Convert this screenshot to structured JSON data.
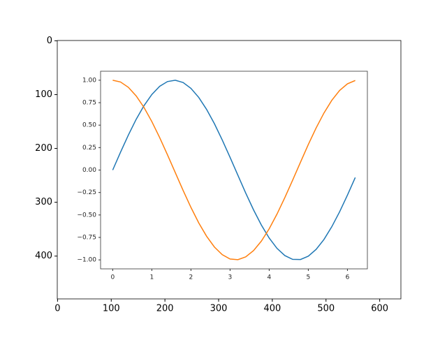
{
  "chart_data": [
    {
      "type": "image",
      "xlim": [
        -0.5,
        639.5
      ],
      "ylim": [
        479.5,
        -0.5
      ],
      "xticks": [
        0,
        100,
        200,
        300,
        400,
        500,
        600
      ],
      "yticks": [
        0,
        100,
        200,
        300,
        400
      ]
    },
    {
      "type": "line",
      "x": [
        0,
        0.2,
        0.4,
        0.6,
        0.8,
        1.0,
        1.2,
        1.4,
        1.6,
        1.8,
        2.0,
        2.2,
        2.4,
        2.6,
        2.8,
        3.0,
        3.2,
        3.4,
        3.6,
        3.8,
        4.0,
        4.2,
        4.4,
        4.6,
        4.8,
        5.0,
        5.2,
        5.4,
        5.6,
        5.8,
        6.0,
        6.2
      ],
      "series": [
        {
          "color": "#1f77b4",
          "values": [
            0,
            0.199,
            0.389,
            0.565,
            0.717,
            0.841,
            0.932,
            0.985,
            1.0,
            0.974,
            0.909,
            0.808,
            0.675,
            0.516,
            0.335,
            0.141,
            -0.058,
            -0.256,
            -0.443,
            -0.612,
            -0.757,
            -0.872,
            -0.952,
            -0.994,
            -0.996,
            -0.959,
            -0.883,
            -0.773,
            -0.631,
            -0.465,
            -0.279,
            -0.083
          ]
        },
        {
          "color": "#ff7f0e",
          "values": [
            1,
            0.98,
            0.921,
            0.825,
            0.697,
            0.54,
            0.362,
            0.17,
            -0.029,
            -0.227,
            -0.416,
            -0.589,
            -0.737,
            -0.857,
            -0.942,
            -0.99,
            -0.998,
            -0.967,
            -0.897,
            -0.791,
            -0.654,
            -0.49,
            -0.307,
            -0.112,
            0.087,
            0.284,
            0.469,
            0.635,
            0.776,
            0.886,
            0.96,
            0.997
          ]
        }
      ],
      "xlim": [
        -0.31,
        6.51
      ],
      "ylim": [
        -1.1,
        1.1
      ],
      "xticks": [
        0,
        1,
        2,
        3,
        4,
        5,
        6
      ],
      "yticks": [
        {
          "value": -1,
          "label": "−1.00"
        },
        {
          "value": -0.75,
          "label": "−0.75"
        },
        {
          "value": -0.5,
          "label": "−0.50"
        },
        {
          "value": -0.25,
          "label": "−0.25"
        },
        {
          "value": 0,
          "label": "0.00"
        },
        {
          "value": 0.25,
          "label": "0.25"
        },
        {
          "value": 0.5,
          "label": "0.50"
        },
        {
          "value": 0.75,
          "label": "0.75"
        },
        {
          "value": 1,
          "label": "1.00"
        }
      ]
    }
  ]
}
